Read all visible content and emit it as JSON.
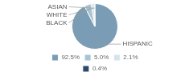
{
  "chart_data": {
    "type": "pie",
    "categories": [
      "HISPANIC",
      "BLACK",
      "WHITE",
      "ASIAN"
    ],
    "values": [
      92.5,
      5.0,
      2.1,
      0.4
    ],
    "value_labels": [
      "92.5%",
      "5.0%",
      "2.1%",
      "0.4%"
    ],
    "colors": [
      "#7a9db5",
      "#a8c4d4",
      "#d4e4ee",
      "#2c4a6e"
    ],
    "legend": "bottom"
  }
}
